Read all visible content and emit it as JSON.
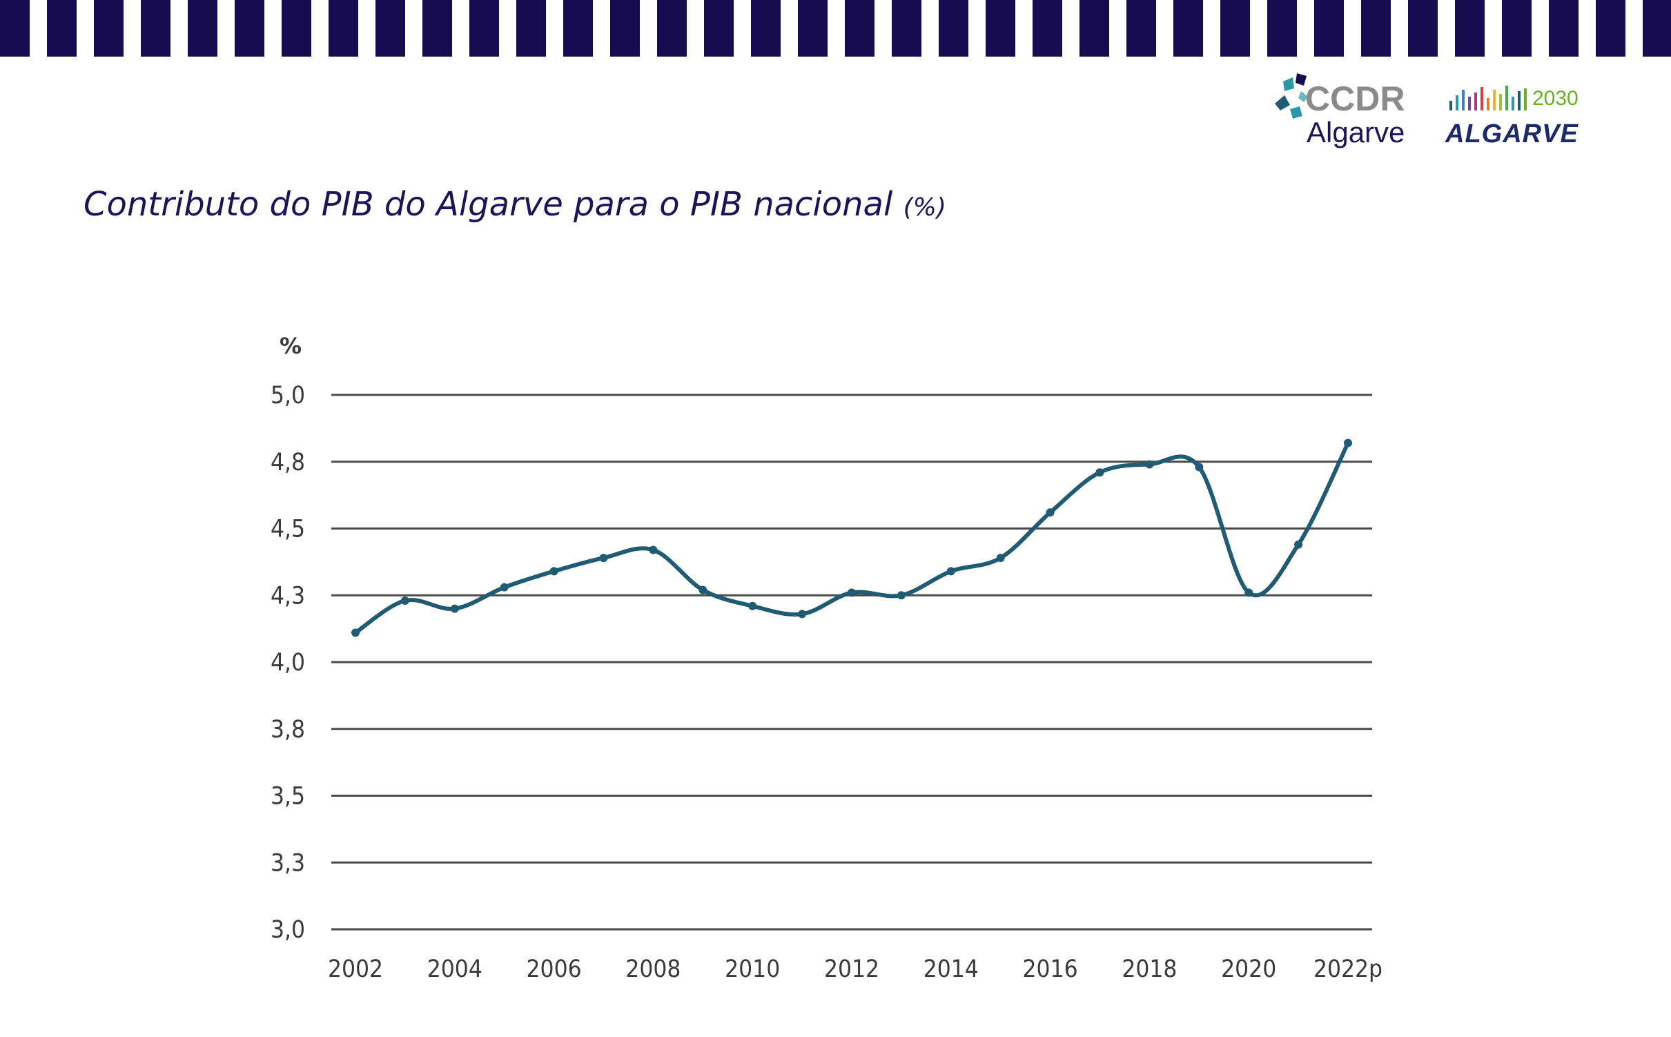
{
  "header": {
    "title": "Contributo do PIB do Algarve para o PIB nacional",
    "title_unit": "(%)"
  },
  "logos": {
    "ccdr": {
      "line1": "CCDR",
      "line2": "Algarve"
    },
    "algarve2030": {
      "year": "2030",
      "name": "ALGARVE"
    }
  },
  "colors": {
    "banner": "#160c4f",
    "title": "#1c1456",
    "series": "#1f5c74",
    "gridline": "#4a4a4a"
  },
  "chart_data": {
    "type": "line",
    "title": "",
    "xlabel": "",
    "ylabel": "%",
    "ylim": [
      3.0,
      5.0
    ],
    "grid": true,
    "y_ticks": [
      {
        "value": 3.0,
        "label": "3,0"
      },
      {
        "value": 3.25,
        "label": "3,3"
      },
      {
        "value": 3.5,
        "label": "3,5"
      },
      {
        "value": 3.75,
        "label": "3,8"
      },
      {
        "value": 4.0,
        "label": "4,0"
      },
      {
        "value": 4.25,
        "label": "4,3"
      },
      {
        "value": 4.5,
        "label": "4,5"
      },
      {
        "value": 4.75,
        "label": "4,8"
      },
      {
        "value": 5.0,
        "label": "5,0"
      }
    ],
    "x_tick_labels": [
      "2002",
      "2004",
      "2006",
      "2008",
      "2010",
      "2012",
      "2014",
      "2016",
      "2018",
      "2020",
      "2022p"
    ],
    "x": [
      "2002",
      "2003",
      "2004",
      "2005",
      "2006",
      "2007",
      "2008",
      "2009",
      "2010",
      "2011",
      "2012",
      "2013",
      "2014",
      "2015",
      "2016",
      "2017",
      "2018",
      "2019",
      "2020",
      "2021",
      "2022p"
    ],
    "series": [
      {
        "values": [
          4.11,
          4.23,
          4.2,
          4.28,
          4.34,
          4.39,
          4.42,
          4.27,
          4.21,
          4.18,
          4.26,
          4.25,
          4.34,
          4.39,
          4.56,
          4.71,
          4.74,
          4.73,
          4.26,
          4.44,
          4.82
        ]
      }
    ]
  }
}
